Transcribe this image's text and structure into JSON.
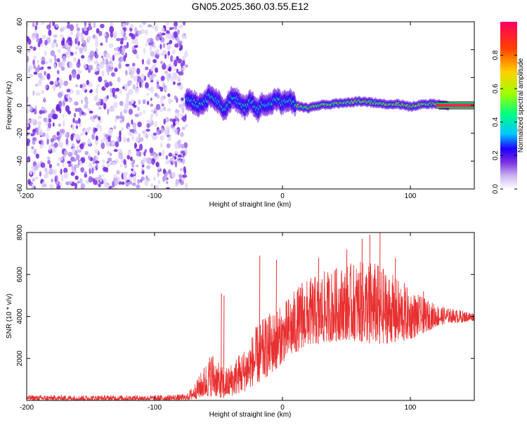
{
  "title": "GN05.2025.360.03.55.E12",
  "chart_data": [
    {
      "type": "heatmap",
      "xlabel": "Height of straight line (km)",
      "ylabel": "Frequency (Hz)",
      "xlim": [
        -200,
        150
      ],
      "ylim": [
        -60,
        60
      ],
      "xticks": [
        -200,
        -100,
        0,
        100
      ],
      "xtick_labels": [
        "-200",
        "-100",
        "0",
        "100"
      ],
      "yticks": [
        -60,
        -40,
        -20,
        0,
        20,
        40,
        60
      ],
      "ytick_labels": [
        "-60",
        "-40",
        "-20",
        "0",
        "20",
        "40",
        "60"
      ],
      "colorbar": {
        "label": "Normalized spectral amplitude",
        "range": [
          0,
          1
        ],
        "ticks": [
          0.0,
          0.2,
          0.4,
          0.6,
          0.8
        ],
        "tick_labels": [
          "0.0",
          "0.2",
          "0.4",
          "0.6",
          "0.8"
        ],
        "colors": [
          "#ffffff",
          "#c9b3f0",
          "#7a2fe0",
          "#1e00ff",
          "#00c8ff",
          "#00ff80",
          "#a0ff00",
          "#ffd000",
          "#ff4000",
          "#ff0060"
        ]
      },
      "noise_region": {
        "x_range": [
          -200,
          -75
        ],
        "amplitude": 0.1
      },
      "signal_track": [
        {
          "x": -75,
          "f": 5
        },
        {
          "x": -70,
          "f": 3
        },
        {
          "x": -65,
          "f": 0
        },
        {
          "x": -60,
          "f": 4
        },
        {
          "x": -55,
          "f": 8
        },
        {
          "x": -50,
          "f": 2
        },
        {
          "x": -45,
          "f": -3
        },
        {
          "x": -40,
          "f": 5
        },
        {
          "x": -35,
          "f": 3
        },
        {
          "x": -30,
          "f": -2
        },
        {
          "x": -25,
          "f": 4
        },
        {
          "x": -20,
          "f": -4
        },
        {
          "x": -15,
          "f": 2
        },
        {
          "x": -10,
          "f": 0
        },
        {
          "x": -5,
          "f": 5
        },
        {
          "x": 0,
          "f": 1
        },
        {
          "x": 5,
          "f": 4
        },
        {
          "x": 10,
          "f": 0
        },
        {
          "x": 15,
          "f": -1
        },
        {
          "x": 20,
          "f": -2
        },
        {
          "x": 30,
          "f": 0
        },
        {
          "x": 40,
          "f": 1
        },
        {
          "x": 50,
          "f": 2
        },
        {
          "x": 60,
          "f": 3
        },
        {
          "x": 70,
          "f": 2
        },
        {
          "x": 80,
          "f": 1
        },
        {
          "x": 90,
          "f": 1
        },
        {
          "x": 100,
          "f": -1
        },
        {
          "x": 110,
          "f": 1
        },
        {
          "x": 120,
          "f": 1
        },
        {
          "x": 130,
          "f": 0
        },
        {
          "x": 150,
          "f": 0
        }
      ]
    },
    {
      "type": "line",
      "xlabel": "Height of straight line (km)",
      "ylabel": "SNR (10 * v/v)",
      "xlim": [
        -200,
        150
      ],
      "ylim": [
        0,
        8000
      ],
      "xticks": [
        -200,
        -100,
        0,
        100
      ],
      "xtick_labels": [
        "-200",
        "-100",
        "0",
        "100"
      ],
      "yticks": [
        2000,
        4000,
        6000,
        8000
      ],
      "ytick_labels": [
        "2000",
        "4000",
        "6000",
        "8000"
      ],
      "series": [
        {
          "color": "#e83030",
          "envelope": {
            "x": [
              -200,
              -150,
              -100,
              -75,
              -70,
              -65,
              -60,
              -55,
              -50,
              -45,
              -40,
              -35,
              -30,
              -25,
              -20,
              -15,
              -10,
              -5,
              0,
              5,
              10,
              15,
              20,
              30,
              40,
              50,
              60,
              70,
              80,
              90,
              100,
              110,
              120,
              130,
              140,
              150
            ],
            "low": [
              0,
              0,
              0,
              0,
              50,
              100,
              150,
              200,
              150,
              100,
              200,
              300,
              400,
              600,
              800,
              1000,
              1200,
              1500,
              1800,
              2000,
              2200,
              2500,
              2600,
              2700,
              2800,
              2900,
              2800,
              2700,
              2700,
              2800,
              2900,
              3200,
              3500,
              3700,
              3700,
              3800
            ],
            "high": [
              250,
              250,
              250,
              300,
              700,
              1200,
              1800,
              2400,
              1800,
              1500,
              1800,
              2200,
              2500,
              3000,
              3600,
              3900,
              4200,
              4400,
              4500,
              5000,
              5300,
              5600,
              5800,
              6100,
              6300,
              6500,
              6600,
              6700,
              6300,
              5800,
              5300,
              4900,
              4600,
              4400,
              4300,
              4200
            ]
          },
          "spikes": [
            {
              "x": -48,
              "y": 5100
            },
            {
              "x": -46,
              "y": 5000
            },
            {
              "x": -18,
              "y": 6900
            },
            {
              "x": -5,
              "y": 6700
            },
            {
              "x": 15,
              "y": 5600
            },
            {
              "x": 28,
              "y": 6800
            },
            {
              "x": 42,
              "y": 6300
            },
            {
              "x": 50,
              "y": 7200
            },
            {
              "x": 62,
              "y": 7700
            },
            {
              "x": 68,
              "y": 7900
            },
            {
              "x": 76,
              "y": 8000
            },
            {
              "x": 88,
              "y": 6800
            },
            {
              "x": 95,
              "y": 5600
            },
            {
              "x": 110,
              "y": 5200
            }
          ]
        }
      ]
    }
  ]
}
